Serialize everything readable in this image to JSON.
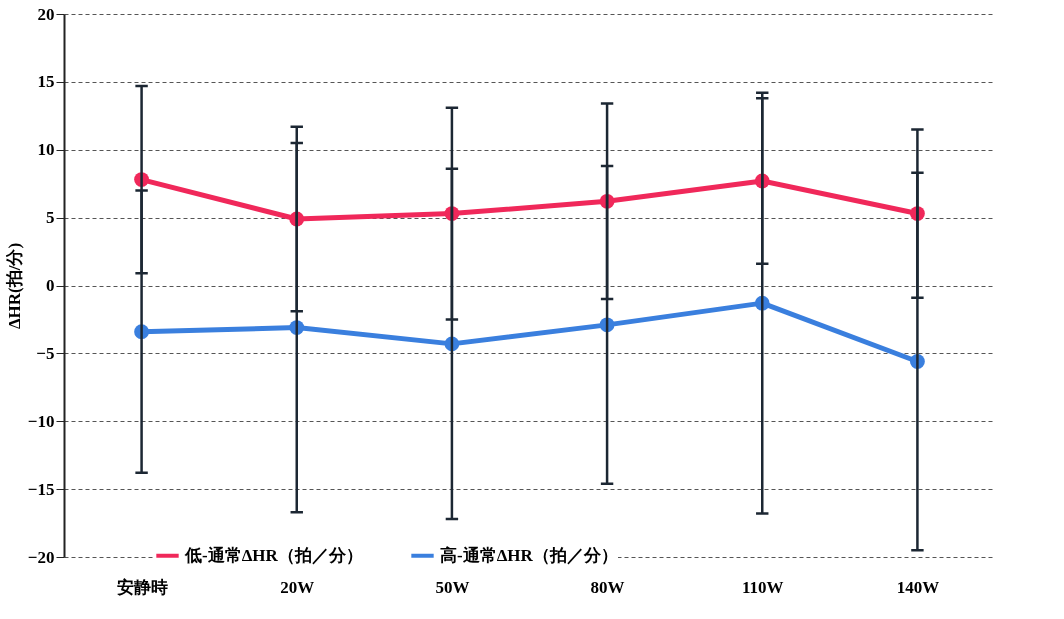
{
  "chart_data": {
    "type": "line",
    "ylabel": "ΔHR(拍/分)",
    "categories": [
      "安静時",
      "20W",
      "50W",
      "80W",
      "110W",
      "140W"
    ],
    "series": [
      {
        "name": "低-通常ΔHR（拍／分）",
        "color": "#f0285a",
        "values": [
          7.8,
          4.9,
          5.3,
          6.2,
          7.7,
          5.3
        ],
        "errors": [
          6.9,
          6.8,
          7.8,
          7.2,
          6.1,
          6.2
        ]
      },
      {
        "name": "高-通常ΔHR（拍／分）",
        "color": "#3a7fde",
        "values": [
          -3.4,
          -3.1,
          -4.3,
          -2.9,
          -1.3,
          -5.6
        ],
        "errors": [
          10.4,
          13.6,
          12.9,
          11.7,
          15.5,
          13.9
        ]
      }
    ],
    "ylim": [
      -20,
      20
    ],
    "yticks": [
      -20,
      -15,
      -10,
      -5,
      0,
      5,
      10,
      15,
      20
    ],
    "grid": "y",
    "legend": "bottom",
    "marker": "circle",
    "line_style": "solid"
  }
}
